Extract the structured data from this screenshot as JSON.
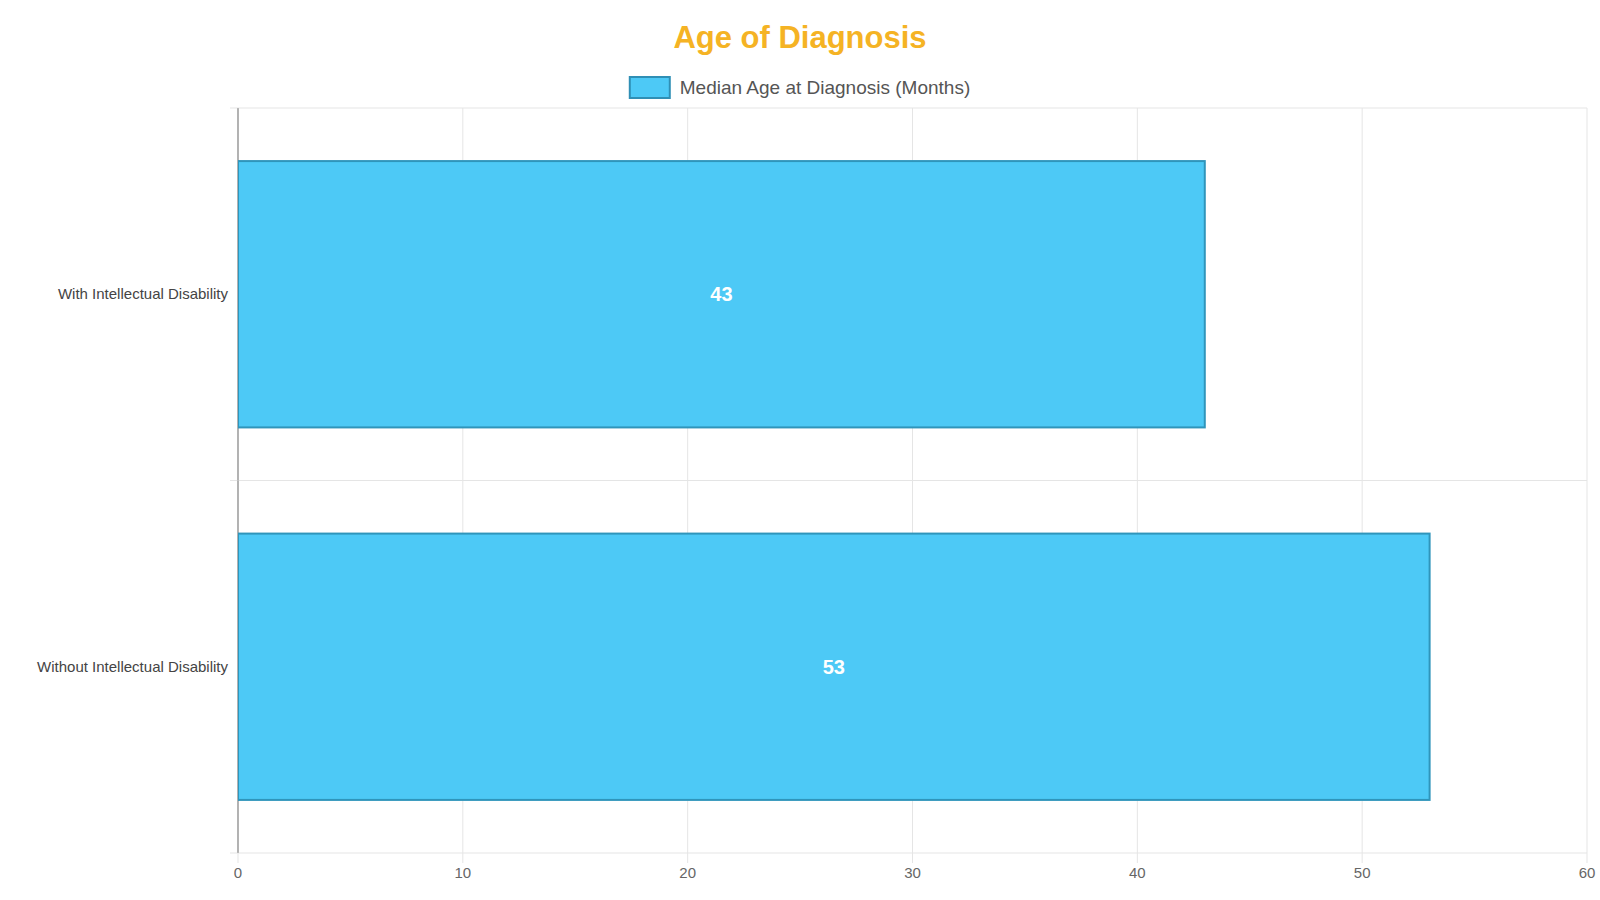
{
  "chart_data": {
    "type": "bar",
    "title": "Age of Diagnosis",
    "orientation": "horizontal",
    "categories": [
      "With Intellectual Disability",
      "Without Intellectual Disability"
    ],
    "series": [
      {
        "name": "Median Age at Diagnosis (Months)",
        "color": "#4dc9f6",
        "values": [
          43,
          53
        ]
      }
    ],
    "xlim": [
      0,
      60
    ],
    "xticks": [
      0,
      10,
      20,
      30,
      40,
      50,
      60
    ],
    "grid": true,
    "legend": "top",
    "data_labels": true
  }
}
